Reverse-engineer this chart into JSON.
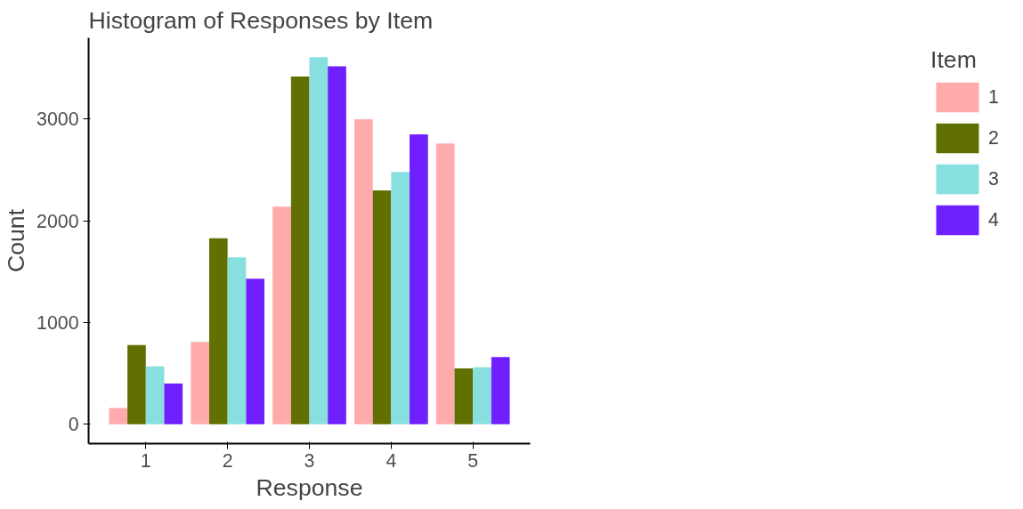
{
  "chart_data": {
    "type": "bar",
    "title": "Histogram of Responses by Item",
    "xlabel": "Response",
    "ylabel": "Count",
    "legend_title": "Item",
    "categories": [
      "1",
      "2",
      "3",
      "4",
      "5"
    ],
    "series": [
      {
        "name": "1",
        "color": "#ffabab",
        "values": [
          160,
          810,
          2140,
          3000,
          2760
        ]
      },
      {
        "name": "2",
        "color": "#617000",
        "values": [
          780,
          1830,
          3420,
          2300,
          550
        ]
      },
      {
        "name": "3",
        "color": "#87dfdf",
        "values": [
          570,
          1640,
          3610,
          2480,
          560
        ]
      },
      {
        "name": "4",
        "color": "#6e20ff",
        "values": [
          400,
          1430,
          3520,
          2850,
          660
        ]
      }
    ],
    "ylim": [
      -190,
      3800
    ],
    "yticks": [
      0,
      1000,
      2000,
      3000
    ],
    "grid": false,
    "legend": "right"
  }
}
